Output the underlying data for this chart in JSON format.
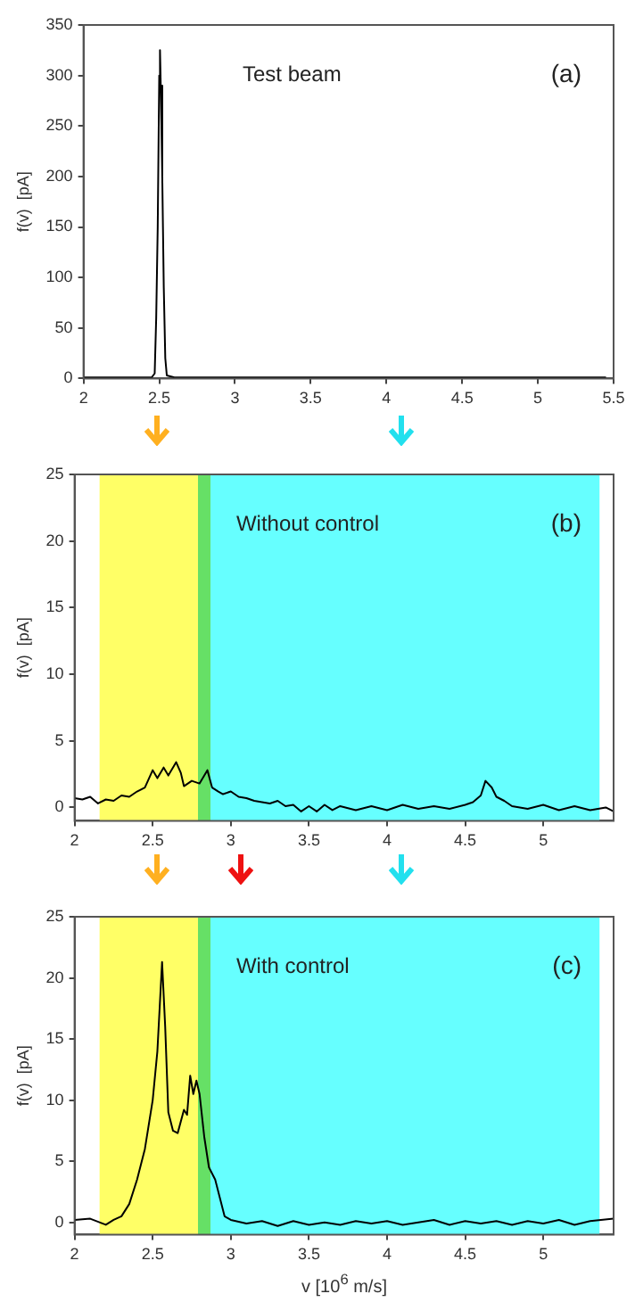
{
  "chart_data": [
    {
      "type": "line",
      "ylabel": "f(v)  [pA]",
      "annotations": [
        "Test beam",
        "(a)"
      ],
      "xlim": [
        2,
        5.5
      ],
      "xticks": [
        2,
        2.5,
        3,
        3.5,
        4,
        4.5,
        5,
        5.5
      ],
      "ylim": [
        0,
        350
      ],
      "yticks": [
        0,
        50,
        100,
        150,
        200,
        250,
        300,
        350
      ],
      "grid": false,
      "marker": "none",
      "line_style": "solid",
      "series": [
        {
          "color": "#000000",
          "x": [
            2,
            2.3,
            2.45,
            2.47,
            2.48,
            2.49,
            2.5,
            2.505,
            2.51,
            2.52,
            2.53,
            2.54,
            2.55,
            2.6,
            3,
            3.5,
            4,
            4.5,
            5,
            5.45
          ],
          "values": [
            1,
            1,
            1,
            5,
            60,
            150,
            300,
            325,
            290,
            200,
            90,
            20,
            3,
            1,
            1,
            1,
            1,
            1,
            1,
            1
          ]
        }
      ]
    },
    {
      "type": "line",
      "ylabel": "f(v)  [pA]",
      "annotations": [
        "Without control",
        "(b)"
      ],
      "xlim": [
        2,
        5.45
      ],
      "xticks": [
        2,
        2.5,
        3,
        3.5,
        4,
        4.5,
        5
      ],
      "ylim": [
        -1,
        25
      ],
      "yticks": [
        0,
        5,
        10,
        15,
        20,
        25
      ],
      "grid": false,
      "marker": "none",
      "line_style": "solid",
      "bands": [
        {
          "axis": "x",
          "from": 2.16,
          "to": 2.79,
          "color": "#ffff66"
        },
        {
          "axis": "x",
          "from": 2.79,
          "to": 2.87,
          "color": "#66e066"
        },
        {
          "axis": "x",
          "from": 2.87,
          "to": 5.36,
          "color": "#66ffff"
        }
      ],
      "series": [
        {
          "color": "#000000",
          "x": [
            2,
            2.05,
            2.1,
            2.15,
            2.2,
            2.25,
            2.3,
            2.35,
            2.4,
            2.45,
            2.5,
            2.53,
            2.57,
            2.6,
            2.65,
            2.68,
            2.7,
            2.75,
            2.8,
            2.85,
            2.88,
            2.92,
            2.95,
            3,
            3.05,
            3.1,
            3.15,
            3.2,
            3.25,
            3.3,
            3.35,
            3.4,
            3.45,
            3.5,
            3.55,
            3.6,
            3.65,
            3.7,
            3.8,
            3.9,
            4,
            4.1,
            4.2,
            4.3,
            4.4,
            4.5,
            4.55,
            4.6,
            4.63,
            4.67,
            4.7,
            4.75,
            4.8,
            4.9,
            5,
            5.1,
            5.2,
            5.3,
            5.4,
            5.45
          ],
          "values": [
            0.7,
            0.6,
            0.8,
            0.3,
            0.6,
            0.5,
            0.9,
            0.8,
            1.2,
            1.5,
            2.8,
            2.2,
            3,
            2.4,
            3.4,
            2.6,
            1.6,
            2,
            1.8,
            2.8,
            1.5,
            1.2,
            1,
            1.2,
            0.8,
            0.7,
            0.5,
            0.4,
            0.3,
            0.5,
            0.1,
            0.2,
            -0.3,
            0.1,
            -0.3,
            0.2,
            -0.2,
            0.1,
            -0.2,
            0.1,
            -0.2,
            0.2,
            -0.1,
            0.1,
            -0.1,
            0.2,
            0.4,
            0.9,
            2,
            1.5,
            0.8,
            0.5,
            0.1,
            -0.1,
            0.2,
            -0.2,
            0.1,
            -0.2,
            0,
            -0.3
          ]
        }
      ]
    },
    {
      "type": "line",
      "ylabel": "f(v)  [pA]",
      "xlabel": "v  [10$^{6}$ m/s]",
      "annotations": [
        "With control",
        "(c)"
      ],
      "xlim": [
        2,
        5.45
      ],
      "xticks": [
        2,
        2.5,
        3,
        3.5,
        4,
        4.5,
        5
      ],
      "ylim": [
        -1,
        25
      ],
      "yticks": [
        0,
        5,
        10,
        15,
        20,
        25
      ],
      "grid": false,
      "marker": "none",
      "line_style": "solid",
      "bands": [
        {
          "axis": "x",
          "from": 2.16,
          "to": 2.79,
          "color": "#ffff66"
        },
        {
          "axis": "x",
          "from": 2.79,
          "to": 2.87,
          "color": "#66e066"
        },
        {
          "axis": "x",
          "from": 2.87,
          "to": 5.36,
          "color": "#66ffff"
        }
      ],
      "series": [
        {
          "color": "#000000",
          "x": [
            2,
            2.1,
            2.2,
            2.25,
            2.3,
            2.35,
            2.4,
            2.45,
            2.5,
            2.53,
            2.56,
            2.58,
            2.6,
            2.63,
            2.66,
            2.7,
            2.72,
            2.74,
            2.76,
            2.78,
            2.8,
            2.83,
            2.86,
            2.9,
            2.93,
            2.96,
            3,
            3.1,
            3.2,
            3.3,
            3.4,
            3.5,
            3.6,
            3.7,
            3.8,
            3.9,
            4,
            4.1,
            4.2,
            4.3,
            4.4,
            4.5,
            4.6,
            4.7,
            4.8,
            4.9,
            5,
            5.1,
            5.2,
            5.3,
            5.45
          ],
          "values": [
            0.2,
            0.3,
            -0.2,
            0.2,
            0.5,
            1.5,
            3.5,
            6,
            10,
            14,
            21.3,
            16,
            9,
            7.5,
            7.3,
            9.2,
            8.8,
            12,
            10.5,
            11.6,
            10.5,
            7,
            4.5,
            3.5,
            2,
            0.5,
            0.2,
            -0.1,
            0.1,
            -0.3,
            0.1,
            -0.2,
            0,
            -0.2,
            0.1,
            -0.1,
            0.1,
            -0.2,
            0,
            0.2,
            -0.2,
            0.1,
            -0.1,
            0.1,
            -0.2,
            0.1,
            -0.1,
            0.2,
            -0.2,
            0.1,
            0.3
          ]
        }
      ]
    }
  ]
}
